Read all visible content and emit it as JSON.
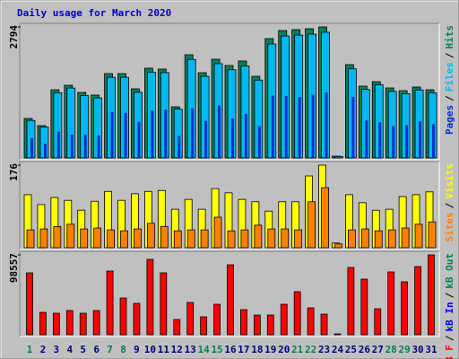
{
  "chart_data": {
    "type": "bar",
    "title": "Daily usage for March 2020",
    "legend_separator": "/",
    "categories": [
      "1",
      "2",
      "3",
      "4",
      "5",
      "6",
      "7",
      "8",
      "9",
      "10",
      "11",
      "12",
      "13",
      "14",
      "15",
      "16",
      "17",
      "18",
      "19",
      "20",
      "21",
      "22",
      "23",
      "24",
      "25",
      "26",
      "27",
      "28",
      "29",
      "30",
      "31"
    ],
    "category_label_colors": [
      "#00805c",
      "#000080",
      "#000080",
      "#000080",
      "#000080",
      "#000080",
      "#00805c",
      "#00805c",
      "#000080",
      "#000080",
      "#000080",
      "#000080",
      "#000080",
      "#00805c",
      "#00805c",
      "#000080",
      "#000080",
      "#000080",
      "#000080",
      "#000080",
      "#00805c",
      "#00805c",
      "#000080",
      "#000080",
      "#000080",
      "#000080",
      "#000080",
      "#00805c",
      "#00805c",
      "#000080",
      "#000080"
    ],
    "panels": [
      {
        "ylim": [
          0,
          2794
        ],
        "yticks": [
          2794
        ],
        "legend_order": [
          2,
          1,
          0
        ],
        "series": [
          {
            "name": "Hits",
            "color": "#00805c",
            "values": [
              842,
              689,
              1454,
              1550,
              1397,
              1340,
              1799,
              1799,
              1474,
              1914,
              1895,
              1091,
              2201,
              1818,
              2105,
              1971,
              2067,
              1741,
              2545,
              2717,
              2737,
              2756,
              2794,
              38,
              1990,
              1531,
              1627,
              1493,
              1435,
              1512,
              1454
            ]
          },
          {
            "name": "Files",
            "color": "#00b8f0",
            "values": [
              800,
              660,
              1390,
              1490,
              1330,
              1280,
              1720,
              1720,
              1400,
              1830,
              1820,
              1040,
              2100,
              1740,
              2010,
              1880,
              1960,
              1660,
              2430,
              2600,
              2620,
              2640,
              2680,
              30,
              1900,
              1460,
              1560,
              1420,
              1370,
              1450,
              1390
            ]
          },
          {
            "name": "Pages",
            "color": "#0030d0",
            "values": [
              420,
              300,
              560,
              500,
              490,
              480,
              980,
              960,
              770,
              1010,
              1030,
              470,
              1060,
              790,
              1120,
              840,
              940,
              680,
              1330,
              1320,
              1300,
              1350,
              1400,
              12,
              1300,
              800,
              760,
              680,
              700,
              780,
              720
            ]
          }
        ]
      },
      {
        "ylim": [
          0,
          176
        ],
        "yticks": [
          176
        ],
        "legend_order": [
          1,
          0
        ],
        "series": [
          {
            "name": "Visits",
            "color": "#ffff00",
            "values": [
              113,
              92,
              107,
              101,
              80,
              99,
              120,
              101,
              115,
              120,
              122,
              82,
              103,
              82,
              126,
              117,
              103,
              98,
              78,
              98,
              98,
              153,
              176,
              10,
              113,
              96,
              80,
              82,
              109,
              113,
              119
            ]
          },
          {
            "name": "Sites",
            "color": "#ff8000",
            "values": [
              38,
              40,
              45,
              50,
              40,
              42,
              38,
              36,
              40,
              52,
              45,
              36,
              38,
              38,
              65,
              36,
              38,
              48,
              40,
              40,
              38,
              98,
              128,
              8,
              38,
              40,
              36,
              38,
              42,
              50,
              55
            ]
          }
        ]
      },
      {
        "ylim": [
          0,
          98557
        ],
        "yticks": [
          98557
        ],
        "legend_order": [
          0,
          1,
          2
        ],
        "series": [
          {
            "name": "kB F",
            "color": "#ff0000",
            "values": [
              76410,
              27680,
              26570,
              29900,
              26570,
              29900,
              78620,
              45400,
              38760,
              93020,
              76410,
              18830,
              39870,
              22150,
              37650,
              86370,
              31010,
              24360,
              24360,
              37650,
              53160,
              33220,
              25470,
              1100,
              83050,
              68660,
              32110,
              77510,
              65330,
              84160,
              98557
            ]
          },
          {
            "name": "kB In",
            "color": "#0000ff"
          },
          {
            "name": "kB Out",
            "color": "#00805c"
          }
        ]
      }
    ]
  }
}
